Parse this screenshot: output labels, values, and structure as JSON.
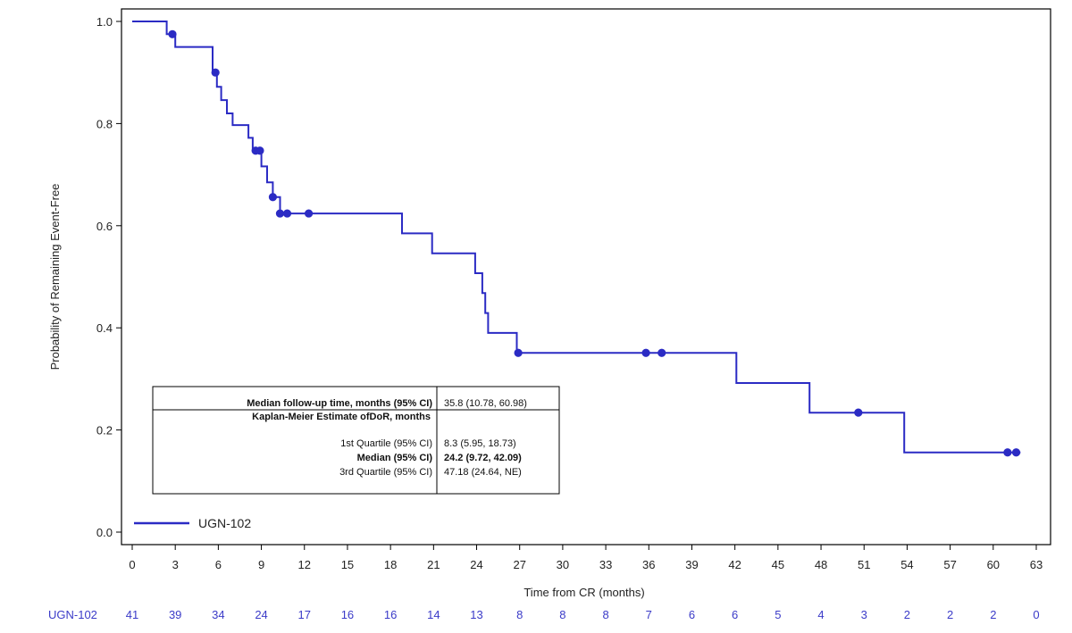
{
  "chart_data": {
    "type": "line",
    "subtype": "kaplan-meier",
    "xlabel": "Time from CR (months)",
    "ylabel": "Probability of Remaining Event-Free",
    "xlim": [
      0,
      63
    ],
    "ylim": [
      0,
      1.0
    ],
    "x_ticks": [
      "0",
      "3",
      "6",
      "9",
      "12",
      "15",
      "18",
      "21",
      "24",
      "27",
      "30",
      "33",
      "36",
      "39",
      "42",
      "45",
      "48",
      "51",
      "54",
      "57",
      "60",
      "63"
    ],
    "y_ticks": [
      "0.0",
      "0.2",
      "0.4",
      "0.6",
      "0.8",
      "1.0"
    ],
    "series": [
      {
        "name": "UGN-102",
        "color": "#2b2bc4",
        "steps": [
          [
            0,
            1.0
          ],
          [
            2.4,
            0.975
          ],
          [
            3.0,
            0.95
          ],
          [
            5.6,
            0.9
          ],
          [
            5.9,
            0.872
          ],
          [
            6.2,
            0.846
          ],
          [
            6.6,
            0.82
          ],
          [
            7.0,
            0.797
          ],
          [
            8.1,
            0.772
          ],
          [
            8.4,
            0.747
          ],
          [
            9.0,
            0.716
          ],
          [
            9.4,
            0.685
          ],
          [
            9.8,
            0.656
          ],
          [
            10.3,
            0.624
          ],
          [
            18.8,
            0.585
          ],
          [
            20.9,
            0.546
          ],
          [
            23.9,
            0.507
          ],
          [
            24.4,
            0.468
          ],
          [
            24.6,
            0.429
          ],
          [
            24.8,
            0.39
          ],
          [
            26.8,
            0.351
          ],
          [
            42.1,
            0.292
          ],
          [
            47.2,
            0.234
          ],
          [
            53.8,
            0.156
          ],
          [
            61.9,
            0.156
          ]
        ],
        "censored": [
          [
            2.8,
            0.975
          ],
          [
            5.8,
            0.9
          ],
          [
            8.6,
            0.747
          ],
          [
            8.9,
            0.747
          ],
          [
            9.8,
            0.656
          ],
          [
            10.3,
            0.624
          ],
          [
            10.8,
            0.624
          ],
          [
            12.3,
            0.624
          ],
          [
            26.9,
            0.351
          ],
          [
            35.8,
            0.351
          ],
          [
            36.9,
            0.351
          ],
          [
            50.6,
            0.234
          ],
          [
            61.0,
            0.156
          ],
          [
            61.6,
            0.156
          ]
        ]
      }
    ],
    "legend": {
      "label": "UGN-102",
      "position": "bottom-left"
    },
    "stats_table": {
      "rows": [
        {
          "label": "Median follow-up time, months (95% CI)",
          "value": "35.8 (10.78, 60.98)",
          "bold": true
        },
        {
          "label": "Kaplan-Meier Estimate ofDoR, months",
          "value": "",
          "bold": true
        },
        {
          "label": "1st Quartile (95% CI)",
          "value": "8.3 (5.95, 18.73)",
          "bold": false
        },
        {
          "label": "Median (95% CI)",
          "value": "24.2 (9.72, 42.09)",
          "bold": true
        },
        {
          "label": "3rd Quartile (95% CI)",
          "value": "47.18 (24.64, NE)",
          "bold": false
        }
      ]
    },
    "at_risk": {
      "label": "UGN-102",
      "counts": [
        "41",
        "39",
        "34",
        "24",
        "17",
        "16",
        "16",
        "14",
        "13",
        "8",
        "8",
        "8",
        "7",
        "6",
        "6",
        "5",
        "4",
        "3",
        "2",
        "2",
        "2",
        "0"
      ]
    }
  }
}
